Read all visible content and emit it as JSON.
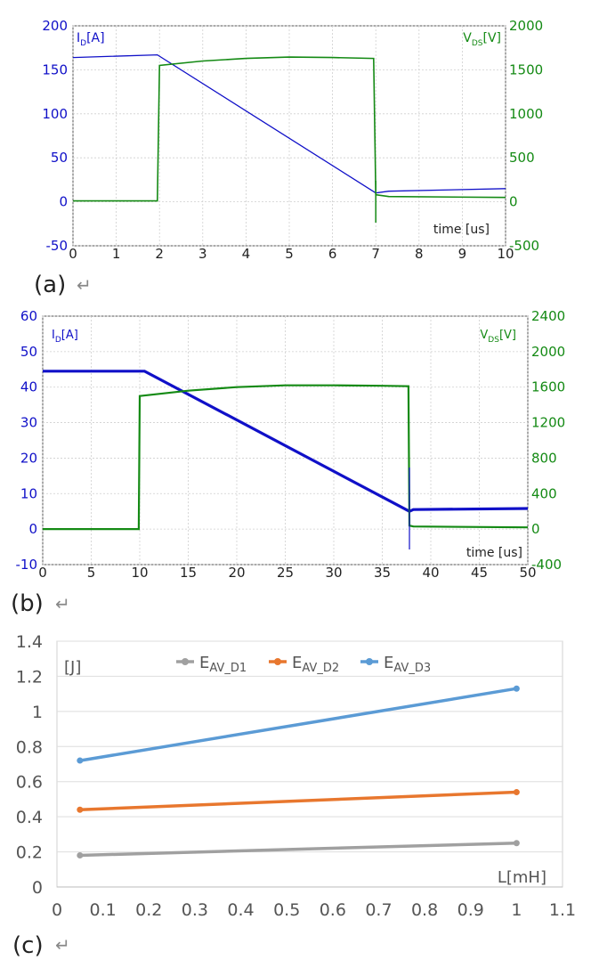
{
  "panels": [
    {
      "label": "(a)",
      "return_glyph": "↵"
    },
    {
      "label": "(b)",
      "return_glyph": "↵"
    },
    {
      "label": "(c)",
      "return_glyph": "↵"
    }
  ],
  "colors": {
    "blue": "#1010c8",
    "green": "#148a14",
    "gray": "#a0a0a0",
    "orange": "#e8772e",
    "lightblue": "#5b9bd5",
    "grid": "#cfcfcf"
  },
  "chart_data": [
    {
      "type": "line",
      "x": [
        0,
        1.95,
        2.0,
        6.95,
        7.0,
        7.3,
        10
      ],
      "xlim": [
        0,
        10
      ],
      "xticks": [
        "0",
        "1",
        "2",
        "3",
        "4",
        "5",
        "6",
        "7",
        "8",
        "9",
        "10"
      ],
      "xlabel": "time [us]",
      "ylabel_left": "I_D[A]",
      "ylabel_right": "V_DS[V]",
      "ylim_left": [
        -50,
        200
      ],
      "ylim_right": [
        -500,
        2000
      ],
      "yticks_left": [
        "200",
        "150",
        "100",
        "50",
        "0",
        "-50"
      ],
      "yticks_right": [
        "2000",
        "1500",
        "1000",
        "500",
        "0",
        "-500"
      ],
      "series": [
        {
          "name": "I_D",
          "axis": "left",
          "x": [
            0,
            1.95,
            7.0,
            7.3,
            10
          ],
          "values": [
            164,
            167,
            10,
            12,
            15
          ]
        },
        {
          "name": "V_DS",
          "axis": "right",
          "x": [
            0,
            1.95,
            2.0,
            3,
            4,
            5,
            6,
            6.95,
            7.0,
            7.3,
            10
          ],
          "values": [
            10,
            10,
            1550,
            1600,
            1630,
            1645,
            1640,
            1630,
            80,
            60,
            50
          ]
        }
      ],
      "grid": true
    },
    {
      "type": "line",
      "xlim": [
        0,
        50
      ],
      "xticks": [
        "0",
        "5",
        "10",
        "15",
        "20",
        "25",
        "30",
        "35",
        "40",
        "45",
        "50"
      ],
      "xlabel": "time [us]",
      "ylabel_left": "I_D[A]",
      "ylabel_right": "V_DS[V]",
      "ylim_left": [
        -10,
        60
      ],
      "ylim_right": [
        -400,
        2400
      ],
      "yticks_left": [
        "60",
        "50",
        "40",
        "30",
        "20",
        "10",
        "0",
        "-10"
      ],
      "yticks_right": [
        "2400",
        "2000",
        "1600",
        "1200",
        "800",
        "400",
        "0",
        "-400"
      ],
      "series": [
        {
          "name": "I_D",
          "axis": "left",
          "x": [
            0,
            10.5,
            37.8,
            38.2,
            50
          ],
          "values": [
            44.5,
            44.5,
            5,
            5.5,
            5.8
          ]
        },
        {
          "name": "V_DS",
          "axis": "right",
          "x": [
            0,
            9.9,
            10.0,
            15,
            20,
            25,
            30,
            35,
            37.7,
            37.8,
            38.2,
            50
          ],
          "values": [
            0,
            0,
            1500,
            1560,
            1600,
            1620,
            1620,
            1615,
            1610,
            40,
            30,
            20
          ]
        }
      ],
      "grid": true
    },
    {
      "type": "line",
      "x": [
        0.05,
        1.0
      ],
      "xlim": [
        0,
        1.1
      ],
      "xticks": [
        "0",
        "0.1",
        "0.2",
        "0.3",
        "0.4",
        "0.5",
        "0.6",
        "0.7",
        "0.8",
        "0.9",
        "1",
        "1.1"
      ],
      "xlabel": "L[mH]",
      "ylabel": "[J]",
      "ylim": [
        0,
        1.4
      ],
      "yticks": [
        "1.4",
        "1.2",
        "1",
        "0.8",
        "0.6",
        "0.4",
        "0.2",
        "0"
      ],
      "legend_position": "top-center",
      "series": [
        {
          "name": "E_AV_D1",
          "values": [
            0.18,
            0.25
          ]
        },
        {
          "name": "E_AV_D2",
          "values": [
            0.44,
            0.54
          ]
        },
        {
          "name": "E_AV_D3",
          "values": [
            0.72,
            1.13
          ]
        }
      ],
      "legend": [
        {
          "base": "E",
          "sub": "AV_D1"
        },
        {
          "base": "E",
          "sub": "AV_D2"
        },
        {
          "base": "E",
          "sub": "AV_D3"
        }
      ],
      "grid": true
    }
  ]
}
